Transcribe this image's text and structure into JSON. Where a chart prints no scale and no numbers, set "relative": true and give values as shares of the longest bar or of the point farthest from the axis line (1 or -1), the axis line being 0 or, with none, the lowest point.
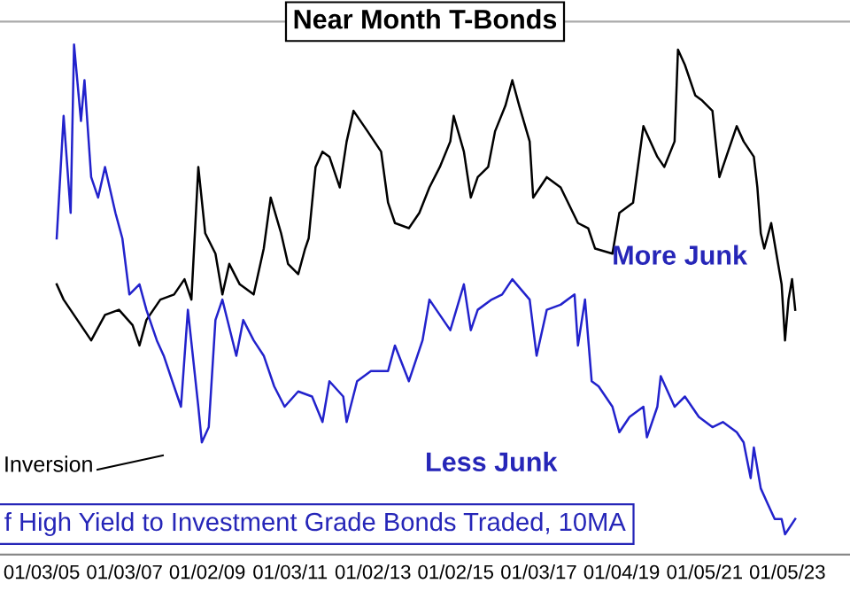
{
  "chart_data": {
    "type": "line",
    "title": "Near Month T-Bonds",
    "relative": true,
    "xlim": [
      "2004-01-01",
      "2024-07-10"
    ],
    "xticks": [
      {
        "value": "2005-01-03",
        "label": "01/03/05"
      },
      {
        "value": "2007-01-03",
        "label": "01/03/07"
      },
      {
        "value": "2009-01-02",
        "label": "01/02/09"
      },
      {
        "value": "2011-01-03",
        "label": "01/03/11"
      },
      {
        "value": "2013-01-02",
        "label": "01/02/13"
      },
      {
        "value": "2015-01-02",
        "label": "01/02/15"
      },
      {
        "value": "2017-01-03",
        "label": "01/03/17"
      },
      {
        "value": "2019-01-04",
        "label": "01/04/19"
      },
      {
        "value": "2021-01-05",
        "label": "01/05/21"
      },
      {
        "value": "2023-01-05",
        "label": "01/05/23"
      }
    ],
    "grid": false,
    "legend": false,
    "marker": "none",
    "line_style": "solid",
    "annotations": [
      "More Junk",
      "Less Junk",
      "f High Yield to Investment Grade Bonds Traded, 10MA",
      "Inversion"
    ],
    "series": [
      {
        "color": "#000000",
        "x": [
          "2005-05",
          "2005-07",
          "2006-03",
          "2006-07",
          "2006-11",
          "2007-03",
          "2007-05",
          "2007-07",
          "2007-11",
          "2008-03",
          "2008-06",
          "2008-08",
          "2008-10",
          "2008-12",
          "2009-03",
          "2009-05",
          "2009-07",
          "2009-10",
          "2010-02",
          "2010-05",
          "2010-07",
          "2010-10",
          "2010-12",
          "2011-03",
          "2011-05",
          "2011-06",
          "2011-08",
          "2011-10",
          "2011-12",
          "2012-03",
          "2012-05",
          "2012-07",
          "2012-11",
          "2013-03",
          "2013-05",
          "2013-07",
          "2013-11",
          "2014-02",
          "2014-05",
          "2014-08",
          "2014-11",
          "2014-12",
          "2015-03",
          "2015-05",
          "2015-07",
          "2015-10",
          "2015-12",
          "2016-03",
          "2016-05",
          "2016-07",
          "2016-10",
          "2016-11",
          "2017-03",
          "2017-07",
          "2017-12",
          "2018-03",
          "2018-05",
          "2018-10",
          "2018-12",
          "2019-04",
          "2019-07",
          "2019-11",
          "2020-01",
          "2020-04",
          "2020-05",
          "2020-07",
          "2020-10",
          "2020-12",
          "2021-03",
          "2021-05",
          "2021-07",
          "2021-10",
          "2021-12",
          "2022-03",
          "2022-04",
          "2022-05",
          "2022-06",
          "2022-08",
          "2022-10",
          "2022-11",
          "2022-12",
          "2023-01",
          "2023-02",
          "2023-03"
        ],
        "values": [
          0.53,
          0.5,
          0.42,
          0.47,
          0.48,
          0.45,
          0.41,
          0.46,
          0.5,
          0.51,
          0.54,
          0.5,
          0.76,
          0.63,
          0.59,
          0.51,
          0.57,
          0.53,
          0.51,
          0.6,
          0.7,
          0.63,
          0.57,
          0.55,
          0.6,
          0.62,
          0.76,
          0.79,
          0.78,
          0.72,
          0.81,
          0.87,
          0.83,
          0.79,
          0.69,
          0.65,
          0.64,
          0.67,
          0.72,
          0.76,
          0.81,
          0.86,
          0.79,
          0.7,
          0.74,
          0.76,
          0.83,
          0.88,
          0.93,
          0.88,
          0.81,
          0.7,
          0.74,
          0.72,
          0.65,
          0.64,
          0.6,
          0.59,
          0.67,
          0.69,
          0.84,
          0.78,
          0.76,
          0.81,
          0.99,
          0.96,
          0.9,
          0.89,
          0.87,
          0.74,
          0.78,
          0.84,
          0.81,
          0.78,
          0.72,
          0.63,
          0.6,
          0.65,
          0.57,
          0.53,
          0.42,
          0.5,
          0.54,
          0.48
        ]
      },
      {
        "color": "#2222cc",
        "x": [
          "2005-05",
          "2005-07",
          "2005-09",
          "2005-10",
          "2005-12",
          "2006-01",
          "2006-03",
          "2006-05",
          "2006-07",
          "2006-10",
          "2006-12",
          "2007-02",
          "2007-05",
          "2007-07",
          "2007-10",
          "2007-12",
          "2008-03",
          "2008-05",
          "2008-07",
          "2008-10",
          "2008-11",
          "2009-01",
          "2009-03",
          "2009-05",
          "2009-09",
          "2009-11",
          "2010-02",
          "2010-05",
          "2010-08",
          "2010-11",
          "2011-03",
          "2011-07",
          "2011-10",
          "2011-12",
          "2012-04",
          "2012-05",
          "2012-08",
          "2012-12",
          "2013-05",
          "2013-07",
          "2013-11",
          "2014-03",
          "2014-05",
          "2014-07",
          "2014-11",
          "2015-03",
          "2015-05",
          "2015-07",
          "2015-11",
          "2016-02",
          "2016-05",
          "2016-10",
          "2016-12",
          "2017-03",
          "2017-07",
          "2017-11",
          "2017-12",
          "2018-02",
          "2018-04",
          "2018-06",
          "2018-10",
          "2018-12",
          "2019-03",
          "2019-07",
          "2019-08",
          "2019-11",
          "2019-12",
          "2020-04",
          "2020-07",
          "2020-11",
          "2021-03",
          "2021-06",
          "2021-10",
          "2021-12",
          "2022-02",
          "2022-03",
          "2022-05",
          "2022-07",
          "2022-09",
          "2022-11",
          "2022-12",
          "2023-03"
        ],
        "values": [
          0.62,
          0.86,
          0.67,
          1.0,
          0.85,
          0.93,
          0.74,
          0.7,
          0.76,
          0.67,
          0.62,
          0.51,
          0.53,
          0.48,
          0.42,
          0.39,
          0.33,
          0.29,
          0.48,
          0.29,
          0.22,
          0.25,
          0.46,
          0.5,
          0.39,
          0.46,
          0.42,
          0.39,
          0.33,
          0.29,
          0.32,
          0.31,
          0.26,
          0.34,
          0.31,
          0.26,
          0.34,
          0.36,
          0.36,
          0.41,
          0.34,
          0.42,
          0.5,
          0.48,
          0.44,
          0.53,
          0.44,
          0.48,
          0.5,
          0.51,
          0.54,
          0.5,
          0.39,
          0.48,
          0.49,
          0.51,
          0.41,
          0.5,
          0.34,
          0.33,
          0.29,
          0.24,
          0.27,
          0.29,
          0.23,
          0.29,
          0.35,
          0.29,
          0.31,
          0.27,
          0.25,
          0.26,
          0.24,
          0.22,
          0.15,
          0.21,
          0.13,
          0.1,
          0.07,
          0.07,
          0.04,
          0.07
        ]
      }
    ]
  }
}
